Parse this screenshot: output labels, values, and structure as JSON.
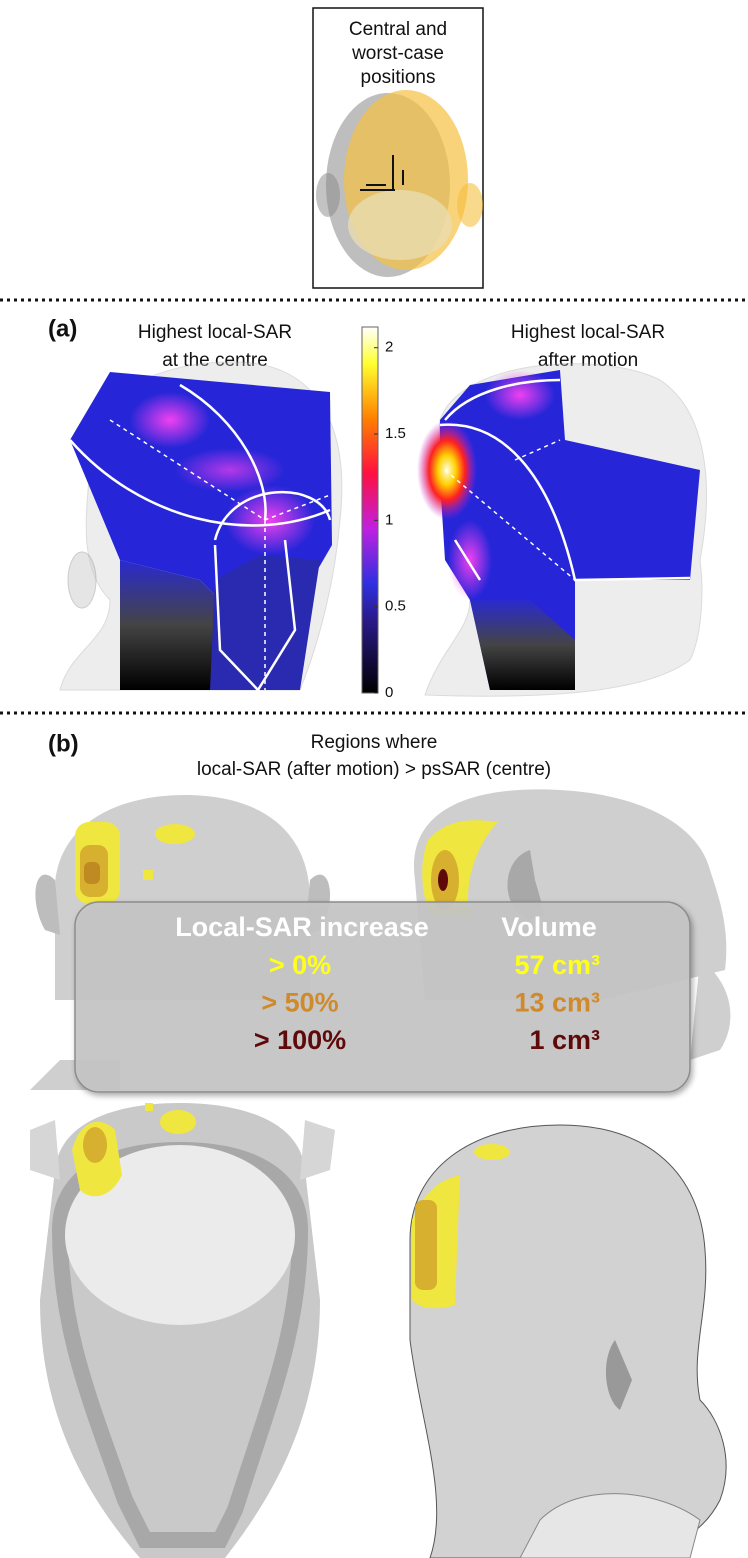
{
  "inset": {
    "title": [
      "Central and",
      "worst-case",
      "positions"
    ]
  },
  "panel_a": {
    "label": "(a)",
    "left_title": [
      "Highest local-SAR",
      "at the centre"
    ],
    "right_title": [
      "Highest local-SAR",
      "after motion"
    ],
    "colorbar": {
      "range": [
        0,
        2.12
      ],
      "ticks": [
        0,
        0.5,
        1,
        1.5,
        2
      ]
    }
  },
  "panel_b": {
    "label": "(b)",
    "title": [
      "Regions where",
      "local-SAR (after motion) > psSAR (centre)"
    ],
    "table": {
      "header": [
        "Local-SAR increase",
        "Volume"
      ],
      "rows": [
        [
          "> 0%",
          "57 cm³"
        ],
        [
          "> 50%",
          "13 cm³"
        ],
        [
          "> 100%",
          "1 cm³"
        ]
      ],
      "row_colors": [
        "#ffff1a",
        "#d08a2a",
        "#5e0a0a"
      ]
    }
  }
}
